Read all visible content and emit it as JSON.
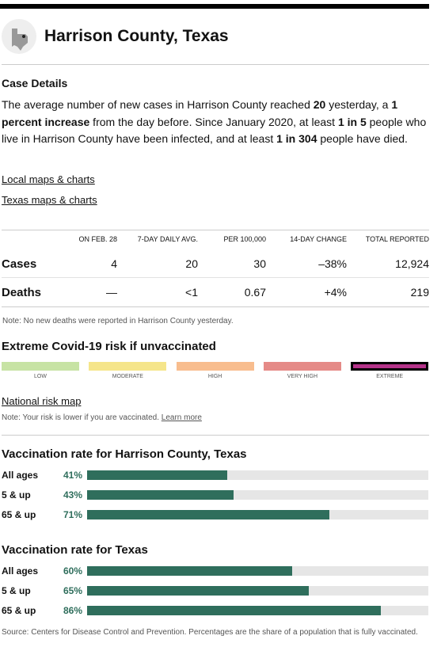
{
  "header": {
    "title": "Harrison County, Texas"
  },
  "case_details": {
    "heading": "Case Details",
    "paragraph": [
      {
        "text": "The average number of new cases in Harrison County reached ",
        "bold": false
      },
      {
        "text": "20",
        "bold": true
      },
      {
        "text": " yesterday, a ",
        "bold": false
      },
      {
        "text": "1 percent increase",
        "bold": true
      },
      {
        "text": " from the day before. Since January 2020, at least ",
        "bold": false
      },
      {
        "text": "1 in 5",
        "bold": true
      },
      {
        "text": " people who live in Harrison County have been infected, and at least ",
        "bold": false
      },
      {
        "text": "1 in 304",
        "bold": true
      },
      {
        "text": " people have died.",
        "bold": false
      }
    ],
    "links": [
      "Local maps & charts",
      "Texas maps & charts"
    ]
  },
  "table": {
    "columns": [
      "ON FEB. 28",
      "7-DAY DAILY AVG.",
      "PER 100,000",
      "14-DAY CHANGE",
      "TOTAL REPORTED"
    ],
    "rows": [
      [
        "Cases",
        "4",
        "20",
        "30",
        "–38%",
        "12,924"
      ],
      [
        "Deaths",
        "—",
        "<1",
        "0.67",
        "+4%",
        "219"
      ]
    ],
    "note": "Note: No new deaths were reported in Harrison County yesterday."
  },
  "risk": {
    "heading": "Extreme Covid-19 risk if unvaccinated",
    "levels": [
      {
        "label": "LOW",
        "color": "#c7e3a4",
        "selected": false
      },
      {
        "label": "MODERATE",
        "color": "#f5e58a",
        "selected": false
      },
      {
        "label": "HIGH",
        "color": "#f8bd8e",
        "selected": false
      },
      {
        "label": "VERY HIGH",
        "color": "#e58a87",
        "selected": false
      },
      {
        "label": "EXTREME",
        "color": "#b5338a",
        "selected": true
      }
    ],
    "link": "National risk map",
    "note": "Note: Your risk is lower if you are vaccinated.",
    "note_link": "Learn more"
  },
  "vaccination": [
    {
      "heading": "Vaccination rate for Harrison County, Texas",
      "rows": [
        {
          "label": "All ages",
          "value": 41,
          "value_label": "41%"
        },
        {
          "label": "5 & up",
          "value": 43,
          "value_label": "43%"
        },
        {
          "label": "65 & up",
          "value": 71,
          "value_label": "71%"
        }
      ]
    },
    {
      "heading": "Vaccination rate for Texas",
      "rows": [
        {
          "label": "All ages",
          "value": 60,
          "value_label": "60%"
        },
        {
          "label": "5 & up",
          "value": 65,
          "value_label": "65%"
        },
        {
          "label": "65 & up",
          "value": 86,
          "value_label": "86%"
        }
      ]
    }
  ],
  "source": "Source: Centers for Disease Control and Prevention. Percentages are the share of a population that is fully vaccinated."
}
